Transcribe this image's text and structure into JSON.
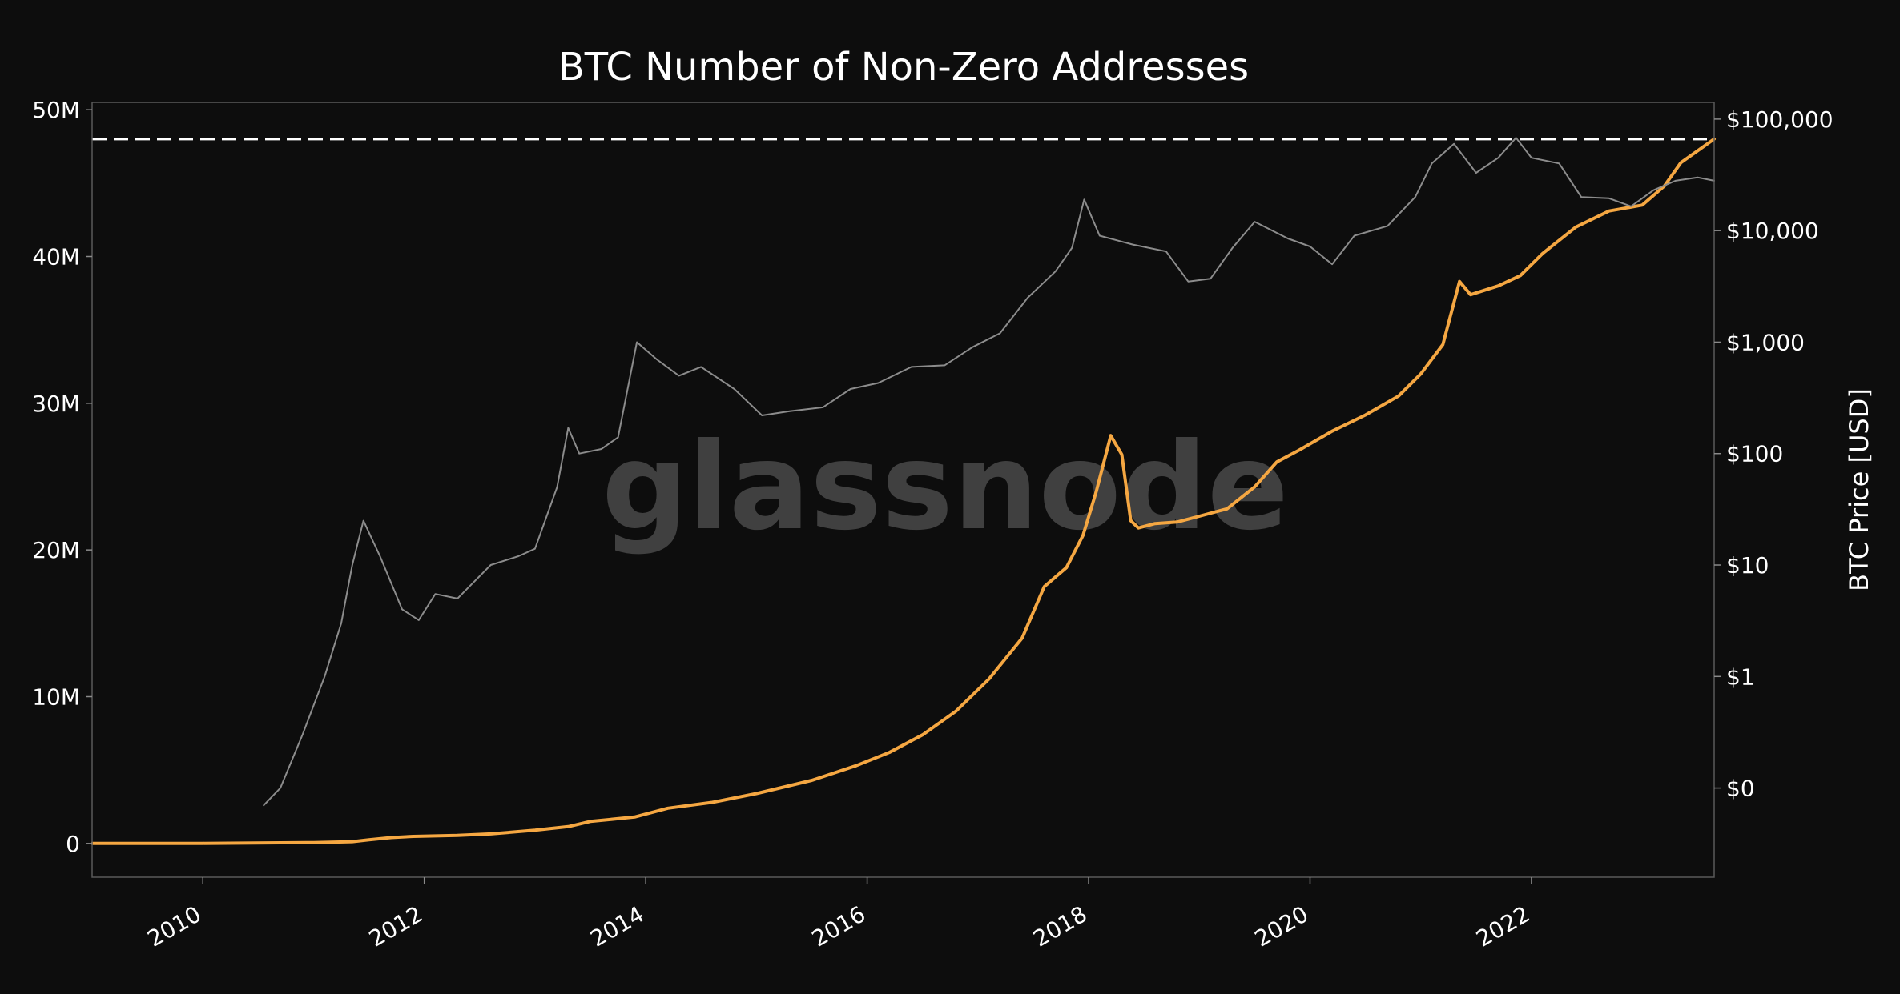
{
  "chart_data": {
    "type": "line",
    "title": "BTC Number of Non-Zero Addresses",
    "watermark": "glassnode",
    "xlabel": "",
    "ylabel_left": "",
    "ylabel_right": "BTC Price [USD]",
    "x_range": [
      2009.0,
      2023.65
    ],
    "x_ticks": [
      {
        "value": 2010,
        "label": "2010"
      },
      {
        "value": 2012,
        "label": "2012"
      },
      {
        "value": 2014,
        "label": "2014"
      },
      {
        "value": 2016,
        "label": "2016"
      },
      {
        "value": 2018,
        "label": "2018"
      },
      {
        "value": 2020,
        "label": "2020"
      },
      {
        "value": 2022,
        "label": "2022"
      }
    ],
    "y_left": {
      "range": [
        -2300000,
        50500000
      ],
      "ticks": [
        {
          "value": 0,
          "label": "0"
        },
        {
          "value": 10000000,
          "label": "10M"
        },
        {
          "value": 20000000,
          "label": "20M"
        },
        {
          "value": 30000000,
          "label": "30M"
        },
        {
          "value": 40000000,
          "label": "40M"
        },
        {
          "value": 50000000,
          "label": "50M"
        }
      ]
    },
    "y_right": {
      "scale": "log",
      "range_log10": [
        -1.8,
        5.15
      ],
      "ticks": [
        {
          "value": 0.1,
          "label": "$0"
        },
        {
          "value": 1,
          "label": "$1"
        },
        {
          "value": 10,
          "label": "$10"
        },
        {
          "value": 100,
          "label": "$100"
        },
        {
          "value": 1000,
          "label": "$1,000"
        },
        {
          "value": 10000,
          "label": "$10,000"
        },
        {
          "value": 100000,
          "label": "$100,000"
        }
      ]
    },
    "ath_line": {
      "value": 48000000,
      "style": "dashed",
      "color": "#ffffff"
    },
    "series": [
      {
        "name": "Number of Non-Zero Addresses",
        "axis": "left",
        "color": "#f5a742",
        "points": [
          [
            2009.0,
            0
          ],
          [
            2010.0,
            10000
          ],
          [
            2011.0,
            60000
          ],
          [
            2011.35,
            120000
          ],
          [
            2011.5,
            250000
          ],
          [
            2011.7,
            400000
          ],
          [
            2011.9,
            480000
          ],
          [
            2012.3,
            550000
          ],
          [
            2012.6,
            650000
          ],
          [
            2013.0,
            900000
          ],
          [
            2013.3,
            1150000
          ],
          [
            2013.5,
            1500000
          ],
          [
            2013.9,
            1800000
          ],
          [
            2014.2,
            2400000
          ],
          [
            2014.6,
            2800000
          ],
          [
            2015.0,
            3400000
          ],
          [
            2015.5,
            4300000
          ],
          [
            2015.9,
            5300000
          ],
          [
            2016.2,
            6200000
          ],
          [
            2016.5,
            7400000
          ],
          [
            2016.8,
            9000000
          ],
          [
            2017.1,
            11200000
          ],
          [
            2017.4,
            14000000
          ],
          [
            2017.6,
            17500000
          ],
          [
            2017.8,
            18800000
          ],
          [
            2017.95,
            21000000
          ],
          [
            2018.07,
            24000000
          ],
          [
            2018.2,
            27800000
          ],
          [
            2018.3,
            26500000
          ],
          [
            2018.38,
            22000000
          ],
          [
            2018.45,
            21500000
          ],
          [
            2018.6,
            21800000
          ],
          [
            2018.8,
            21900000
          ],
          [
            2019.0,
            22300000
          ],
          [
            2019.25,
            22800000
          ],
          [
            2019.5,
            24300000
          ],
          [
            2019.7,
            26000000
          ],
          [
            2019.9,
            26800000
          ],
          [
            2020.2,
            28100000
          ],
          [
            2020.5,
            29200000
          ],
          [
            2020.8,
            30500000
          ],
          [
            2021.0,
            32000000
          ],
          [
            2021.2,
            34000000
          ],
          [
            2021.35,
            38300000
          ],
          [
            2021.45,
            37400000
          ],
          [
            2021.7,
            38000000
          ],
          [
            2021.9,
            38700000
          ],
          [
            2022.1,
            40200000
          ],
          [
            2022.4,
            42000000
          ],
          [
            2022.7,
            43100000
          ],
          [
            2023.0,
            43500000
          ],
          [
            2023.2,
            44800000
          ],
          [
            2023.35,
            46400000
          ],
          [
            2023.5,
            47200000
          ],
          [
            2023.65,
            48000000
          ]
        ]
      },
      {
        "name": "BTC Price [USD]",
        "axis": "right",
        "color": "#8c8c8c",
        "points": [
          [
            2010.55,
            0.07
          ],
          [
            2010.7,
            0.1
          ],
          [
            2010.9,
            0.3
          ],
          [
            2011.1,
            1.0
          ],
          [
            2011.25,
            3.0
          ],
          [
            2011.35,
            10.0
          ],
          [
            2011.45,
            25.0
          ],
          [
            2011.6,
            12.0
          ],
          [
            2011.8,
            4.0
          ],
          [
            2011.95,
            3.2
          ],
          [
            2012.1,
            5.5
          ],
          [
            2012.3,
            5.0
          ],
          [
            2012.6,
            10.0
          ],
          [
            2012.85,
            12.0
          ],
          [
            2013.0,
            14.0
          ],
          [
            2013.2,
            50.0
          ],
          [
            2013.3,
            170.0
          ],
          [
            2013.4,
            100.0
          ],
          [
            2013.6,
            110.0
          ],
          [
            2013.75,
            140.0
          ],
          [
            2013.92,
            1000.0
          ],
          [
            2014.1,
            700.0
          ],
          [
            2014.3,
            500.0
          ],
          [
            2014.5,
            600.0
          ],
          [
            2014.8,
            380.0
          ],
          [
            2015.05,
            220.0
          ],
          [
            2015.3,
            240.0
          ],
          [
            2015.6,
            260.0
          ],
          [
            2015.85,
            380.0
          ],
          [
            2016.1,
            430.0
          ],
          [
            2016.4,
            600.0
          ],
          [
            2016.7,
            620.0
          ],
          [
            2016.95,
            900.0
          ],
          [
            2017.2,
            1200.0
          ],
          [
            2017.45,
            2500.0
          ],
          [
            2017.7,
            4300.0
          ],
          [
            2017.85,
            7000.0
          ],
          [
            2017.96,
            19000.0
          ],
          [
            2018.1,
            9000.0
          ],
          [
            2018.4,
            7500.0
          ],
          [
            2018.7,
            6500.0
          ],
          [
            2018.9,
            3500.0
          ],
          [
            2019.1,
            3700.0
          ],
          [
            2019.3,
            7000.0
          ],
          [
            2019.5,
            12000.0
          ],
          [
            2019.8,
            8500.0
          ],
          [
            2020.0,
            7200.0
          ],
          [
            2020.2,
            5000.0
          ],
          [
            2020.4,
            9000.0
          ],
          [
            2020.7,
            11000.0
          ],
          [
            2020.95,
            20000.0
          ],
          [
            2021.1,
            40000.0
          ],
          [
            2021.3,
            60000.0
          ],
          [
            2021.5,
            33000.0
          ],
          [
            2021.7,
            45000.0
          ],
          [
            2021.86,
            68000.0
          ],
          [
            2022.0,
            45000.0
          ],
          [
            2022.25,
            40000.0
          ],
          [
            2022.45,
            20000.0
          ],
          [
            2022.7,
            19500.0
          ],
          [
            2022.9,
            16500.0
          ],
          [
            2023.1,
            23000.0
          ],
          [
            2023.3,
            28000.0
          ],
          [
            2023.5,
            30000.0
          ],
          [
            2023.65,
            28000.0
          ]
        ]
      }
    ]
  }
}
